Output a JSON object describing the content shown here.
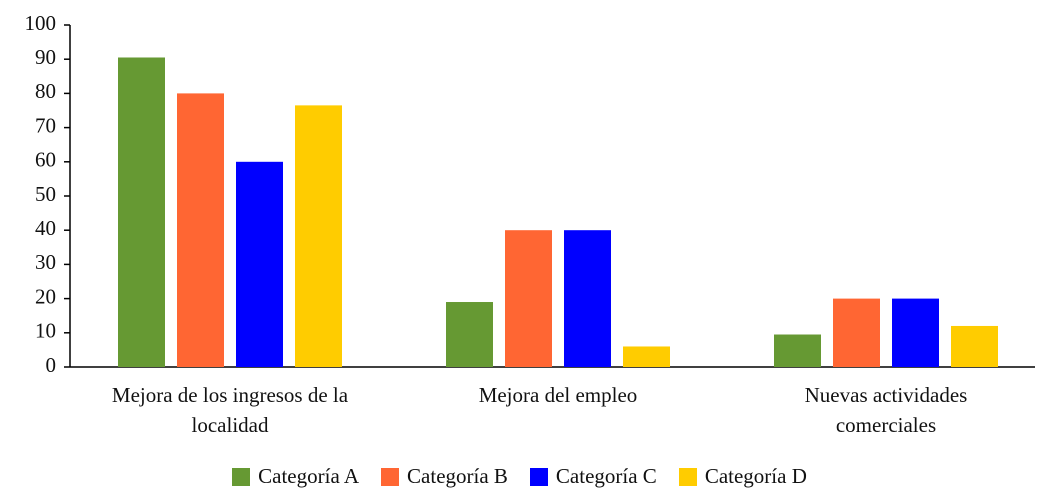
{
  "chart_data": {
    "type": "bar",
    "categories": [
      "Mejora de los ingresos de la localidad",
      "Mejora del empleo",
      "Nuevas actividades comerciales"
    ],
    "series": [
      {
        "name": "Categoría A",
        "color": "#669933",
        "values": [
          90.5,
          19,
          9.5
        ]
      },
      {
        "name": "Categoría B",
        "color": "#ff6633",
        "values": [
          80,
          40,
          20
        ]
      },
      {
        "name": "Categoría C",
        "color": "#0000ff",
        "values": [
          60,
          40,
          20
        ]
      },
      {
        "name": "Categoría D",
        "color": "#ffcc00",
        "values": [
          76.5,
          6,
          12
        ]
      }
    ],
    "ylim": [
      0,
      100
    ],
    "yticks": [
      0,
      10,
      20,
      30,
      40,
      50,
      60,
      70,
      80,
      90,
      100
    ],
    "grid": false,
    "legend": "bottom"
  }
}
